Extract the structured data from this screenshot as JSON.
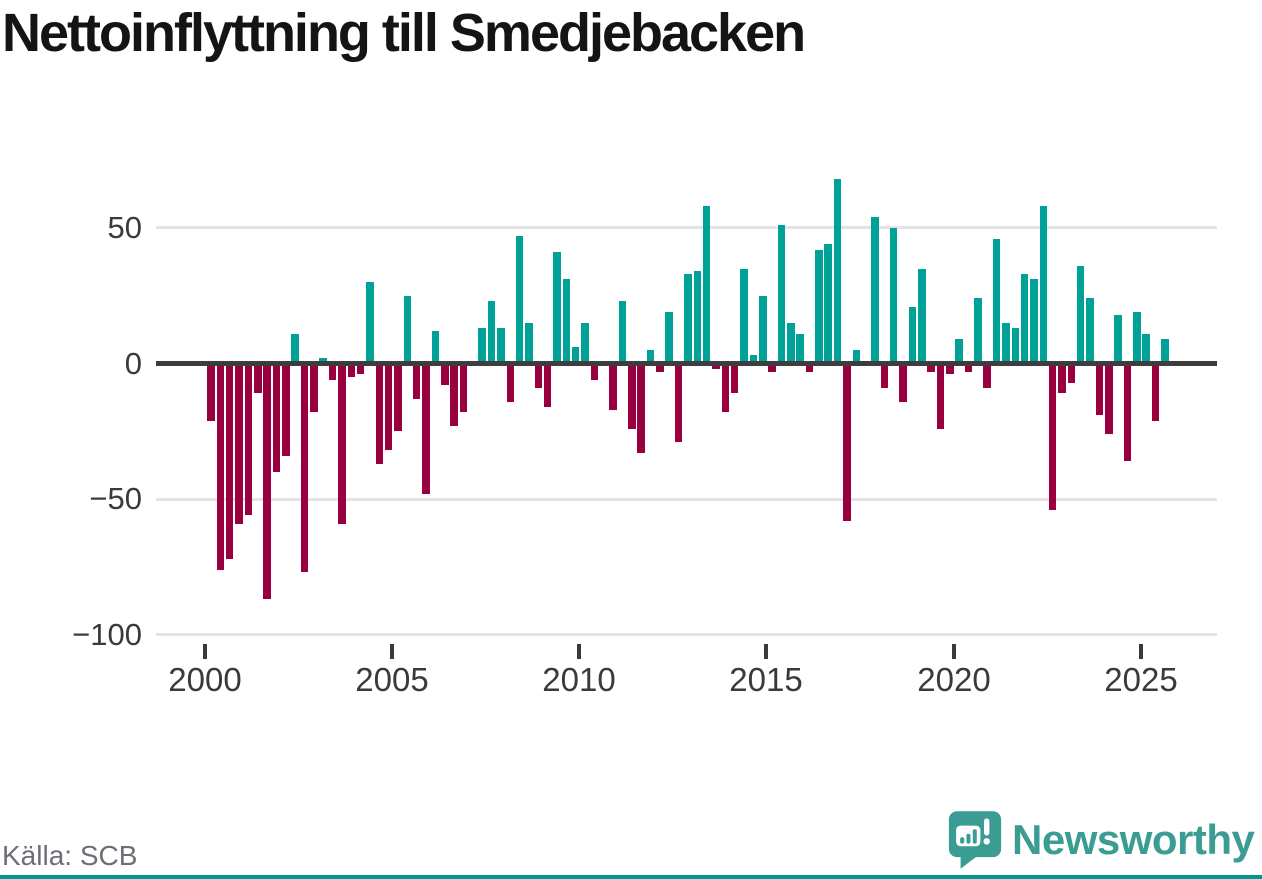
{
  "title": "Nettoinflyttning till Smedjebacken",
  "source": "Källa: SCB",
  "logo": {
    "brand": "Newsworthy"
  },
  "colors": {
    "positive": "#00a298",
    "negative": "#990040",
    "zero_line": "#3d3d3d",
    "grid": "#e4e4e4",
    "axis_text": "#3a3a3a",
    "title_text": "#141414",
    "source_text": "#6e6e76",
    "brand": "#3b9c94",
    "bottom_strip": "#00968f"
  },
  "chart_data": {
    "type": "bar",
    "title": "Nettoinflyttning till Smedjebacken",
    "frequency": "quarterly",
    "start": "2000Q1",
    "end": "2025Q3",
    "xlabel": "",
    "ylabel": "",
    "ylim": [
      -100,
      70
    ],
    "grid": "horizontal",
    "legend": "none",
    "y_ticks": [
      50,
      0,
      -50,
      -100
    ],
    "y_tick_labels": [
      "50",
      "0",
      "−50",
      "−100"
    ],
    "x_ticks": [
      2000,
      2005,
      2010,
      2015,
      2020,
      2025
    ],
    "series": [
      {
        "name": "Nettoinflyttning",
        "values": [
          -21,
          -76,
          -72,
          -59,
          -56,
          -11,
          -87,
          -40,
          -34,
          11,
          -77,
          -18,
          2,
          -6,
          -59,
          -5,
          -4,
          30,
          -37,
          -32,
          -25,
          25,
          -13,
          -48,
          12,
          -8,
          -23,
          -18,
          0,
          13,
          23,
          13,
          -14,
          47,
          15,
          -9,
          -16,
          41,
          31,
          6,
          15,
          -6,
          0,
          -17,
          23,
          -24,
          -33,
          5,
          -3,
          19,
          -29,
          33,
          34,
          58,
          -2,
          -18,
          -11,
          35,
          3,
          25,
          -3,
          51,
          15,
          11,
          -3,
          42,
          44,
          68,
          -58,
          5,
          0,
          54,
          -9,
          50,
          -14,
          21,
          35,
          -3,
          -24,
          -4,
          9,
          -3,
          24,
          -9,
          46,
          15,
          13,
          33,
          31,
          58,
          -54,
          -11,
          -7,
          36,
          24,
          -19,
          -26,
          18,
          -36,
          19,
          11,
          -21,
          9
        ]
      }
    ]
  }
}
